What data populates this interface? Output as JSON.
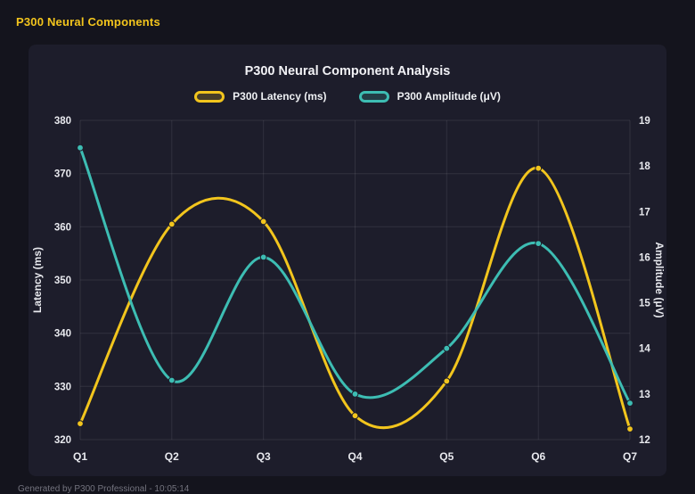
{
  "page": {
    "title": "P300 Neural Components",
    "footer": "Generated by P300 Professional - 10:05:14"
  },
  "chart": {
    "title": "P300 Neural Component Analysis"
  },
  "colors": {
    "background": "#14141d",
    "panel": "#1d1d2b",
    "grid": "rgba(255,255,255,0.09)",
    "tick_text": "#e8e9ee",
    "accent_yellow": "#f2c51d",
    "accent_teal": "#3dbdb3"
  },
  "chart_data": {
    "type": "line",
    "title": "P300 Neural Component Analysis",
    "categories": [
      "Q1",
      "Q2",
      "Q3",
      "Q4",
      "Q5",
      "Q6",
      "Q7"
    ],
    "series": [
      {
        "name": "P300 Latency (ms)",
        "axis": "left",
        "color": "#f2c51d",
        "values": [
          323,
          360.5,
          361,
          324.5,
          331,
          371,
          322
        ]
      },
      {
        "name": "P300 Amplitude (μV)",
        "axis": "right",
        "color": "#3dbdb3",
        "values": [
          18.4,
          13.3,
          16.0,
          13.0,
          14.0,
          16.3,
          12.8
        ]
      }
    ],
    "left_axis": {
      "label": "Latency (ms)",
      "min": 320,
      "max": 380,
      "step": 10
    },
    "right_axis": {
      "label": "Amplitude (μV)",
      "min": 12,
      "max": 19,
      "step": 1
    },
    "grid": true,
    "legend_position": "top",
    "curve": "smooth"
  }
}
